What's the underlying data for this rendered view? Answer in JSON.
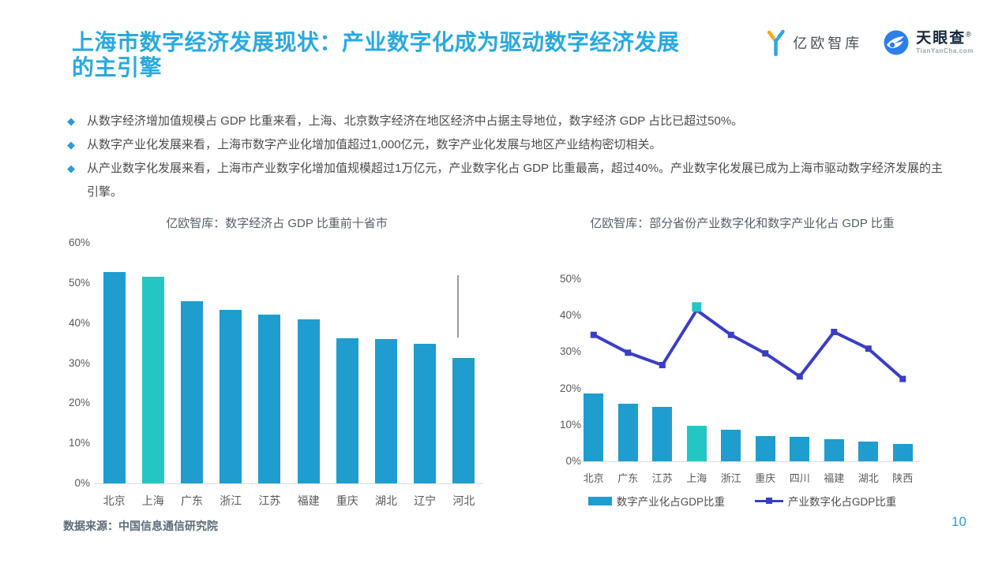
{
  "header": {
    "title_line1": "上海市数字经济发展现状：产业数字化成为驱动数字经济发展",
    "title_line2": "的主引擎",
    "logo_yiou_text": "亿欧智库",
    "logo_tyc_text": "天眼查",
    "logo_tyc_reg": "®",
    "logo_tyc_sub": "TianYanCha.com"
  },
  "bullets": [
    "从数字经济增加值规模占 GDP 比重来看，上海、北京数字经济在地区经济中占据主导地位，数字经济 GDP 占比已超过50%。",
    "从数字产业化发展来看，上海市数字产业化增加值超过1,000亿元，数字产业化发展与地区产业结构密切相关。",
    "从产业数字化发展来看，上海市产业数字化增加值规模超过1万亿元，产业数字化占 GDP 比重最高，超过40%。产业数字化发展已成为上海市驱动数字经济发展的主引擎。"
  ],
  "colors": {
    "accent_blue": "#29A9E0",
    "bar_blue": "#1F9DCE",
    "highlight_teal": "#23C6C3",
    "line_indigo": "#3A3EC6",
    "page_number_blue": "#2E9BD6",
    "logo_orange": "#F7A823",
    "tyc_blue": "#2D7FE8"
  },
  "chart_data": [
    {
      "type": "bar",
      "title": "亿欧智库：数字经济占 GDP 比重前十省市",
      "categories": [
        "北京",
        "上海",
        "广东",
        "浙江",
        "江苏",
        "福建",
        "重庆",
        "湖北",
        "辽宁",
        "河北"
      ],
      "values": [
        52.7,
        51.5,
        45.4,
        43.3,
        42.1,
        41.0,
        36.2,
        36.0,
        34.8,
        31.2
      ],
      "highlight_category": "上海",
      "highlight_index": 1,
      "ylim": [
        0,
        60
      ],
      "y_ticks": [
        "0%",
        "10%",
        "20%",
        "30%",
        "40%",
        "50%",
        "60%"
      ],
      "grid": false,
      "legend_position": "none",
      "annotation_line": {
        "near_category": "河北",
        "from": 36.4,
        "to": 52.0
      }
    },
    {
      "type": "bar+line",
      "title": "亿欧智库：部分省份产业数字化和数字产业化占 GDP 比重",
      "categories": [
        "北京",
        "广东",
        "江苏",
        "上海",
        "浙江",
        "重庆",
        "四川",
        "福建",
        "湖北",
        "陕西"
      ],
      "series": [
        {
          "name": "数字产业化占GDP比重",
          "kind": "bar",
          "values": [
            18.7,
            15.9,
            15.0,
            9.8,
            8.7,
            7.0,
            6.7,
            6.1,
            5.4,
            4.7
          ]
        },
        {
          "name": "产业数字化占GDP比重",
          "kind": "line",
          "values": [
            34.7,
            29.8,
            26.4,
            41.5,
            34.7,
            29.6,
            23.3,
            35.5,
            30.9,
            22.6
          ]
        }
      ],
      "highlight_category": "上海",
      "highlight_index": 3,
      "ylim": [
        0,
        50
      ],
      "y_ticks": [
        "0%",
        "10%",
        "20%",
        "30%",
        "40%",
        "50%"
      ],
      "grid": false,
      "legend_position": "bottom"
    }
  ],
  "footer": {
    "source": "数据来源：中国信息通信研究院",
    "page_number": "10"
  }
}
